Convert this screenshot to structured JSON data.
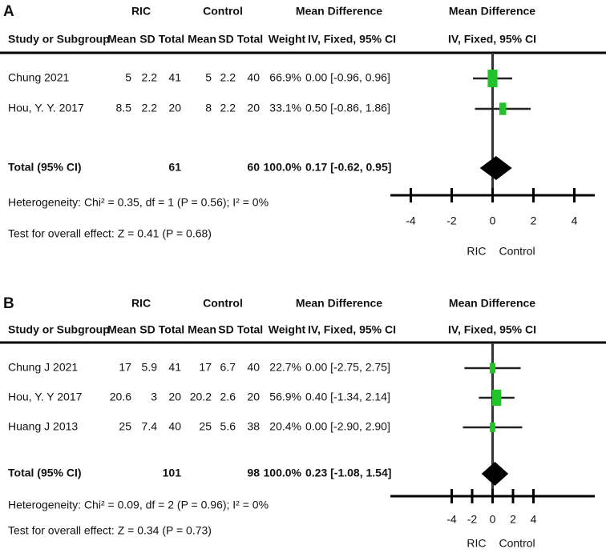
{
  "chart_data": [
    {
      "type": "forest",
      "panel_label": "A",
      "group_headers": [
        "RIC",
        "Control",
        "Mean Difference",
        "Mean Difference"
      ],
      "columns": [
        "Study or Subgroup",
        "Mean",
        "SD",
        "Total",
        "Mean",
        "SD",
        "Total",
        "Weight",
        "IV, Fixed, 95% CI",
        "IV, Fixed, 95% CI"
      ],
      "studies": [
        {
          "name": "Chung 2021",
          "ric": [
            5,
            2.2,
            41
          ],
          "control": [
            5,
            2.2,
            40
          ],
          "weight": 66.9,
          "weight_label": "66.9%",
          "md": 0,
          "ci": [
            -0.96,
            0.96
          ],
          "md_label": "0.00 [-0.96, 0.96]"
        },
        {
          "name": "Hou, Y. Y. 2017",
          "ric": [
            8.5,
            2.2,
            20
          ],
          "control": [
            8,
            2.2,
            20
          ],
          "weight": 33.1,
          "weight_label": "33.1%",
          "md": 0.5,
          "ci": [
            -0.86,
            1.86
          ],
          "md_label": "0.50 [-0.86, 1.86]"
        }
      ],
      "total": {
        "name": "Total (95% CI)",
        "ric_total": 61,
        "control_total": 60,
        "weight": 100,
        "weight_label": "100.0%",
        "md": 0.17,
        "ci": [
          -0.62,
          0.95
        ],
        "md_label": "0.17 [-0.62, 0.95]"
      },
      "heterogeneity": "Heterogeneity: Chi² = 0.35, df = 1 (P = 0.56); I² = 0%",
      "overall_effect": "Test for overall effect: Z = 0.41 (P = 0.68)",
      "xlim": [
        -5,
        5
      ],
      "xticks": [
        -4,
        -2,
        0,
        2,
        4
      ],
      "reference_line": 0,
      "x_axis_labels": [
        "RIC",
        "Control"
      ],
      "square_color": "#22c22a",
      "diamond_color": "#000000"
    },
    {
      "type": "forest",
      "panel_label": "B",
      "group_headers": [
        "RIC",
        "Control",
        "Mean Difference",
        "Mean Difference"
      ],
      "columns": [
        "Study or Subgroup",
        "Mean",
        "SD",
        "Total",
        "Mean",
        "SD",
        "Total",
        "Weight",
        "IV, Fixed, 95% CI",
        "IV, Fixed, 95% CI"
      ],
      "studies": [
        {
          "name": "Chung J 2021",
          "ric": [
            17,
            5.9,
            41
          ],
          "control": [
            17,
            6.7,
            40
          ],
          "weight": 22.7,
          "weight_label": "22.7%",
          "md": 0,
          "ci": [
            -2.75,
            2.75
          ],
          "md_label": "0.00 [-2.75, 2.75]"
        },
        {
          "name": "Hou, Y. Y 2017",
          "ric": [
            20.6,
            3,
            20
          ],
          "control": [
            20.2,
            2.6,
            20
          ],
          "weight": 56.9,
          "weight_label": "56.9%",
          "md": 0.4,
          "ci": [
            -1.34,
            2.14
          ],
          "md_label": "0.40 [-1.34, 2.14]"
        },
        {
          "name": "Huang J 2013",
          "ric": [
            25,
            7.4,
            40
          ],
          "control": [
            25,
            5.6,
            38
          ],
          "weight": 20.4,
          "weight_label": "20.4%",
          "md": 0,
          "ci": [
            -2.9,
            2.9
          ],
          "md_label": "0.00 [-2.90, 2.90]"
        }
      ],
      "total": {
        "name": "Total (95% CI)",
        "ric_total": 101,
        "control_total": 98,
        "weight": 100,
        "weight_label": "100.0%",
        "md": 0.23,
        "ci": [
          -1.08,
          1.54
        ],
        "md_label": "0.23 [-1.08, 1.54]"
      },
      "heterogeneity": "Heterogeneity: Chi² = 0.09, df = 2 (P = 0.96); I² = 0%",
      "overall_effect": "Test for overall effect: Z = 0.34 (P = 0.73)",
      "xlim": [
        -10,
        10
      ],
      "xticks": [
        -4,
        -2,
        0,
        2,
        4
      ],
      "reference_line": 0,
      "x_axis_labels": [
        "RIC",
        "Control"
      ],
      "square_color": "#22c22a",
      "diamond_color": "#000000"
    }
  ]
}
